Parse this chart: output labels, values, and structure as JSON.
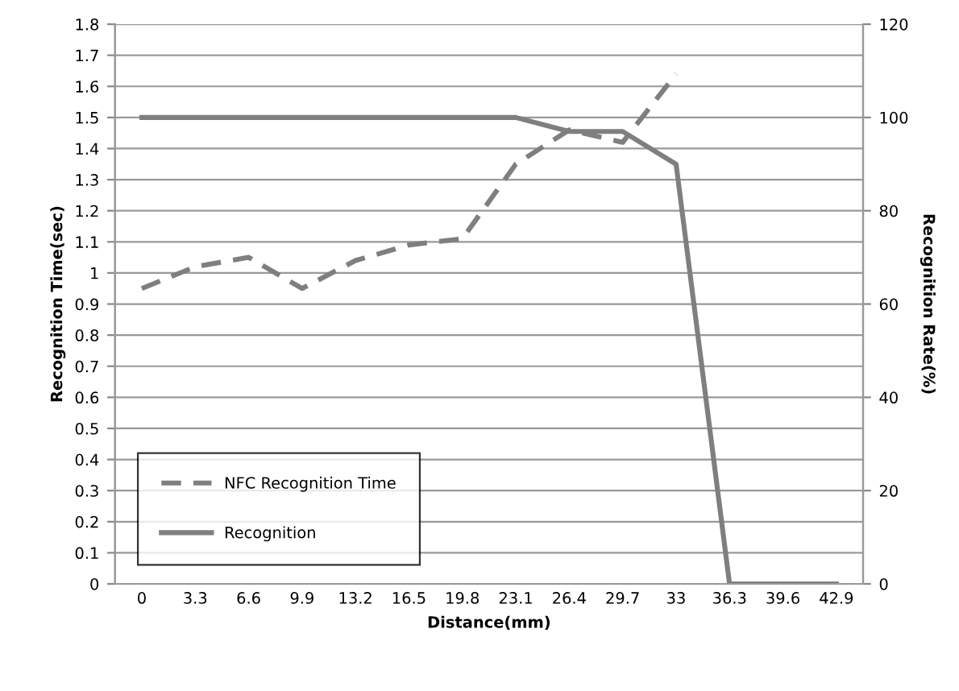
{
  "chart_data": {
    "type": "line",
    "xlabel": "Distance(mm)",
    "ylabel": "Recognition Time(sec)",
    "y2label": "Recognition Rate(%)",
    "categories": [
      "0",
      "3.3",
      "6.6",
      "9.9",
      "13.2",
      "16.5",
      "19.8",
      "23.1",
      "26.4",
      "29.7",
      "33",
      "36.3",
      "39.6",
      "42.9"
    ],
    "series": [
      {
        "name": "NFC Recognition Time",
        "color": "#7f7f7f",
        "line_style": "dashed",
        "values": [
          0.95,
          1.02,
          1.05,
          0.95,
          1.04,
          1.09,
          1.11,
          1.35,
          1.46,
          1.42,
          1.64,
          null,
          null,
          null
        ]
      },
      {
        "name": "Recognition",
        "color": "#7f7f7f",
        "line_style": "solid",
        "axis": "y2",
        "values": [
          100,
          100,
          100,
          100,
          100,
          100,
          100,
          100,
          97,
          97,
          90,
          0,
          0,
          0
        ]
      }
    ],
    "ylim": [
      0,
      1.8
    ],
    "yticks": [
      0,
      0.1,
      0.2,
      0.3,
      0.4,
      0.5,
      0.6,
      0.7,
      0.8,
      0.9,
      1,
      1.1,
      1.2,
      1.3,
      1.4,
      1.5,
      1.6,
      1.7,
      1.8
    ],
    "y2lim": [
      0,
      120
    ],
    "y2ticks": [
      0,
      20,
      40,
      60,
      80,
      100,
      120
    ],
    "grid": "y",
    "legend": "bottom left"
  }
}
